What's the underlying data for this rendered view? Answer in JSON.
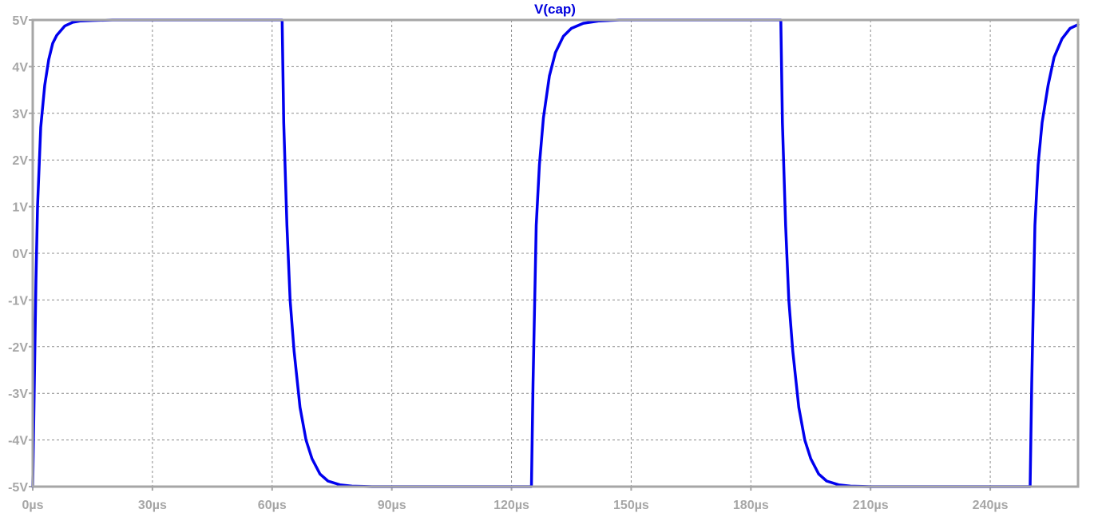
{
  "chart_data": {
    "type": "line",
    "title": "V(cap)",
    "xlabel": "",
    "ylabel": "",
    "xlim": [
      0,
      262
    ],
    "ylim": [
      -5,
      5
    ],
    "grid": true,
    "x_ticks": [
      {
        "value": 0,
        "label": "0µs"
      },
      {
        "value": 30,
        "label": "30µs"
      },
      {
        "value": 60,
        "label": "60µs"
      },
      {
        "value": 90,
        "label": "90µs"
      },
      {
        "value": 120,
        "label": "120µs"
      },
      {
        "value": 150,
        "label": "150µs"
      },
      {
        "value": 180,
        "label": "180µs"
      },
      {
        "value": 210,
        "label": "210µs"
      },
      {
        "value": 240,
        "label": "240µs"
      }
    ],
    "y_ticks": [
      {
        "value": 5,
        "label": "5V"
      },
      {
        "value": 4,
        "label": "4V"
      },
      {
        "value": 3,
        "label": "3V"
      },
      {
        "value": 2,
        "label": "2V"
      },
      {
        "value": 1,
        "label": "1V"
      },
      {
        "value": 0,
        "label": "0V"
      },
      {
        "value": -1,
        "label": "-1V"
      },
      {
        "value": -2,
        "label": "-2V"
      },
      {
        "value": -3,
        "label": "-3V"
      },
      {
        "value": -4,
        "label": "-4V"
      },
      {
        "value": -5,
        "label": "-5V"
      }
    ],
    "series": [
      {
        "name": "V(cap)",
        "color": "#0000ee",
        "x": [
          0,
          0.4,
          0.8,
          1.2,
          2,
          3,
          4,
          5,
          6,
          8,
          10,
          12,
          15,
          20,
          62.5,
          62.9,
          63.7,
          64.5,
          65.5,
          67,
          68.5,
          70,
          72,
          74,
          77,
          80,
          85,
          90,
          125,
          125.4,
          126.2,
          127,
          128,
          129.5,
          131,
          133,
          135,
          138,
          142,
          147,
          187.5,
          187.9,
          188.7,
          189.5,
          190.5,
          192,
          193.5,
          195,
          197,
          199,
          202,
          205,
          210,
          215,
          250,
          250.4,
          251.2,
          252,
          253,
          254.5,
          256,
          258,
          260,
          262
        ],
        "y": [
          -5,
          -2.8,
          -0.6,
          1.0,
          2.7,
          3.6,
          4.15,
          4.5,
          4.67,
          4.87,
          4.95,
          4.98,
          4.99,
          5,
          5,
          2.8,
          0.6,
          -1.0,
          -2.1,
          -3.3,
          -4.0,
          -4.4,
          -4.73,
          -4.88,
          -4.96,
          -4.99,
          -5,
          -5,
          -5,
          -2.8,
          0.6,
          1.9,
          2.9,
          3.8,
          4.3,
          4.65,
          4.82,
          4.93,
          4.98,
          5,
          5,
          2.8,
          0.6,
          -1.0,
          -2.1,
          -3.3,
          -4.0,
          -4.4,
          -4.73,
          -4.88,
          -4.96,
          -4.99,
          -5,
          -5,
          -5,
          -2.8,
          0.6,
          1.9,
          2.8,
          3.6,
          4.2,
          4.6,
          4.82,
          4.9
        ]
      }
    ]
  }
}
